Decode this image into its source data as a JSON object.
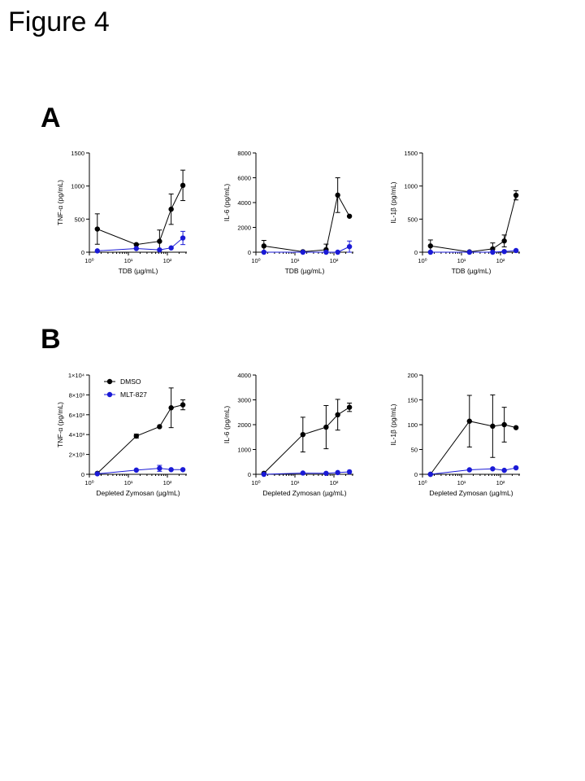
{
  "figure_title": "Figure 4",
  "panels": {
    "a": "A",
    "b": "B"
  },
  "legend": {
    "series": [
      "DMSO",
      "MLT-827"
    ]
  },
  "colors": {
    "dmso": "#000000",
    "mlt827": "#1a1ad6"
  },
  "chart_data": [
    {
      "type": "line",
      "panel": "A",
      "xscale": "log",
      "xlim_exponents": [
        0,
        2.5
      ],
      "xticks": [
        "10⁰",
        "10¹",
        "10²"
      ],
      "xlabel": "TDB (µg/mL)",
      "ylabel": "TNF-α (pg/mL)",
      "ylim": [
        0,
        1500
      ],
      "yticks": [
        {
          "v": 0,
          "t": "0"
        },
        {
          "v": 500,
          "t": "500"
        },
        {
          "v": 1000,
          "t": "1000"
        },
        {
          "v": 1500,
          "t": "1500"
        }
      ],
      "series": [
        {
          "name": "DMSO",
          "color": "#000000",
          "x": [
            1.6,
            16,
            63,
            125,
            250
          ],
          "y": [
            350,
            115,
            165,
            650,
            1010
          ],
          "err": [
            230,
            0,
            170,
            230,
            230
          ]
        },
        {
          "name": "MLT-827",
          "color": "#1a1ad6",
          "x": [
            1.6,
            16,
            63,
            125,
            250
          ],
          "y": [
            20,
            55,
            35,
            65,
            215
          ],
          "err": [
            0,
            0,
            0,
            0,
            100
          ]
        }
      ]
    },
    {
      "type": "line",
      "panel": "A",
      "xscale": "log",
      "xlim_exponents": [
        0,
        2.5
      ],
      "xticks": [
        "10⁰",
        "10¹",
        "10²"
      ],
      "xlabel": "TDB (µg/mL)",
      "ylabel": "IL-6 (pg/mL)",
      "ylim": [
        0,
        8000
      ],
      "yticks": [
        {
          "v": 0,
          "t": "0"
        },
        {
          "v": 2000,
          "t": "2000"
        },
        {
          "v": 4000,
          "t": "4000"
        },
        {
          "v": 6000,
          "t": "6000"
        },
        {
          "v": 8000,
          "t": "8000"
        }
      ],
      "series": [
        {
          "name": "DMSO",
          "color": "#000000",
          "x": [
            1.6,
            16,
            63,
            125,
            250
          ],
          "y": [
            500,
            40,
            200,
            4600,
            2900
          ],
          "err": [
            450,
            0,
            450,
            1400,
            0
          ]
        },
        {
          "name": "MLT-827",
          "color": "#1a1ad6",
          "x": [
            1.6,
            16,
            63,
            125,
            250
          ],
          "y": [
            0,
            0,
            0,
            0,
            450
          ],
          "err": [
            0,
            0,
            0,
            0,
            450
          ]
        }
      ]
    },
    {
      "type": "line",
      "panel": "A",
      "xscale": "log",
      "xlim_exponents": [
        0,
        2.5
      ],
      "xticks": [
        "10⁰",
        "10¹",
        "10²"
      ],
      "xlabel": "TDB (µg/mL)",
      "ylabel": "IL-1β (pg/mL)",
      "ylim": [
        0,
        1500
      ],
      "yticks": [
        {
          "v": 0,
          "t": "0"
        },
        {
          "v": 500,
          "t": "500"
        },
        {
          "v": 1000,
          "t": "1000"
        },
        {
          "v": 1500,
          "t": "1500"
        }
      ],
      "series": [
        {
          "name": "DMSO",
          "color": "#000000",
          "x": [
            1.6,
            16,
            63,
            125,
            250
          ],
          "y": [
            95,
            5,
            50,
            170,
            860
          ],
          "err": [
            90,
            0,
            90,
            90,
            70
          ]
        },
        {
          "name": "MLT-827",
          "color": "#1a1ad6",
          "x": [
            1.6,
            16,
            63,
            125,
            250
          ],
          "y": [
            0,
            0,
            0,
            10,
            25
          ],
          "err": [
            0,
            0,
            0,
            0,
            0
          ]
        }
      ]
    },
    {
      "type": "line",
      "panel": "B",
      "xscale": "log",
      "xlim_exponents": [
        0,
        2.5
      ],
      "xticks": [
        "10⁰",
        "10¹",
        "10²"
      ],
      "xlabel": "Depleted Zymosan (µg/mL)",
      "ylabel": "TNF-α (pg/mL)",
      "ylim": [
        0,
        10000
      ],
      "yticks": [
        {
          "v": 0,
          "t": "0"
        },
        {
          "v": 2000,
          "t": "2×10³"
        },
        {
          "v": 4000,
          "t": "4×10³"
        },
        {
          "v": 6000,
          "t": "6×10³"
        },
        {
          "v": 8000,
          "t": "8×10³"
        },
        {
          "v": 10000,
          "t": "1×10⁴"
        }
      ],
      "legend": true,
      "series": [
        {
          "name": "DMSO",
          "color": "#000000",
          "x": [
            1.6,
            16,
            63,
            125,
            250
          ],
          "y": [
            100,
            3850,
            4800,
            6700,
            7000
          ],
          "err": [
            0,
            200,
            0,
            2000,
            500
          ]
        },
        {
          "name": "MLT-827",
          "color": "#1a1ad6",
          "x": [
            1.6,
            16,
            63,
            125,
            250
          ],
          "y": [
            50,
            420,
            600,
            470,
            470
          ],
          "err": [
            0,
            0,
            300,
            0,
            0
          ]
        }
      ]
    },
    {
      "type": "line",
      "panel": "B",
      "xscale": "log",
      "xlim_exponents": [
        0,
        2.5
      ],
      "xticks": [
        "10⁰",
        "10¹",
        "10²"
      ],
      "xlabel": "Depleted Zymosan (µg/mL)",
      "ylabel": "IL-6 (pg/mL)",
      "ylim": [
        0,
        4000
      ],
      "yticks": [
        {
          "v": 0,
          "t": "0"
        },
        {
          "v": 1000,
          "t": "1000"
        },
        {
          "v": 2000,
          "t": "2000"
        },
        {
          "v": 3000,
          "t": "3000"
        },
        {
          "v": 4000,
          "t": "4000"
        }
      ],
      "series": [
        {
          "name": "DMSO",
          "color": "#000000",
          "x": [
            1.6,
            16,
            63,
            125,
            250
          ],
          "y": [
            40,
            1600,
            1900,
            2400,
            2700
          ],
          "err": [
            0,
            700,
            870,
            620,
            170
          ]
        },
        {
          "name": "MLT-827",
          "color": "#1a1ad6",
          "x": [
            1.6,
            16,
            63,
            125,
            250
          ],
          "y": [
            0,
            50,
            40,
            70,
            100
          ],
          "err": [
            0,
            0,
            0,
            0,
            0
          ]
        }
      ]
    },
    {
      "type": "line",
      "panel": "B",
      "xscale": "log",
      "xlim_exponents": [
        0,
        2.5
      ],
      "xticks": [
        "10⁰",
        "10¹",
        "10²"
      ],
      "xlabel": "Depleted Zymosan (µg/mL)",
      "ylabel": "IL-1β (pg/mL)",
      "ylim": [
        0,
        200
      ],
      "yticks": [
        {
          "v": 0,
          "t": "0"
        },
        {
          "v": 50,
          "t": "50"
        },
        {
          "v": 100,
          "t": "100"
        },
        {
          "v": 150,
          "t": "150"
        },
        {
          "v": 200,
          "t": "200"
        }
      ],
      "series": [
        {
          "name": "DMSO",
          "color": "#000000",
          "x": [
            1.6,
            16,
            63,
            125,
            250
          ],
          "y": [
            0,
            107,
            97,
            100,
            94
          ],
          "err": [
            0,
            52,
            63,
            35,
            0
          ]
        },
        {
          "name": "MLT-827",
          "color": "#1a1ad6",
          "x": [
            1.6,
            16,
            63,
            125,
            250
          ],
          "y": [
            0,
            9,
            11,
            8,
            13
          ],
          "err": [
            0,
            0,
            0,
            0,
            0
          ]
        }
      ]
    }
  ]
}
